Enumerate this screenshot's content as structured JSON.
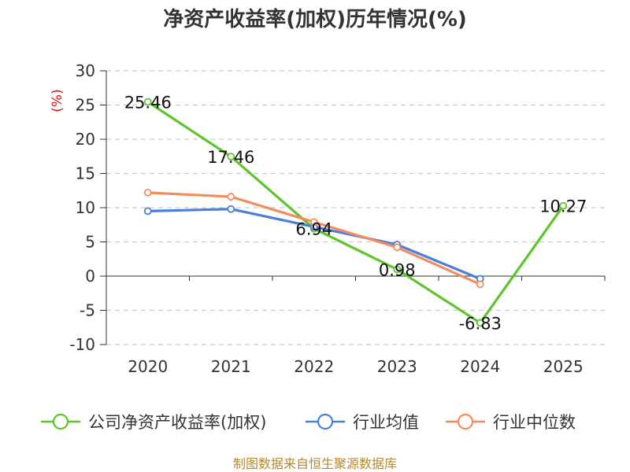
{
  "chart_data": {
    "type": "line",
    "title": "净资产收益率(加权)历年情况(%)",
    "unit_label": "(%)",
    "categories": [
      "2020",
      "2021",
      "2022",
      "2023",
      "2024",
      "2025"
    ],
    "ylim": [
      -10,
      30
    ],
    "yticks": [
      30,
      25,
      20,
      15,
      10,
      5,
      0,
      -5,
      -10
    ],
    "grid": true,
    "legend_position": "bottom",
    "series": [
      {
        "name": "公司净资产收益率(加权)",
        "color": "#5ec52c",
        "values": [
          25.46,
          17.46,
          6.94,
          0.98,
          -6.83,
          10.27
        ],
        "labels": [
          "25.46",
          "17.46",
          "6.94",
          "0.98",
          "-6.83",
          "10.27"
        ]
      },
      {
        "name": "行业均值",
        "color": "#4c7fd8",
        "values": [
          9.5,
          9.8,
          7.2,
          4.6,
          -0.4,
          null
        ]
      },
      {
        "name": "行业中位数",
        "color": "#f38c5f",
        "values": [
          12.2,
          11.6,
          7.9,
          4.2,
          -1.2,
          null
        ]
      }
    ]
  },
  "source": "制图数据来自恒生聚源数据库"
}
